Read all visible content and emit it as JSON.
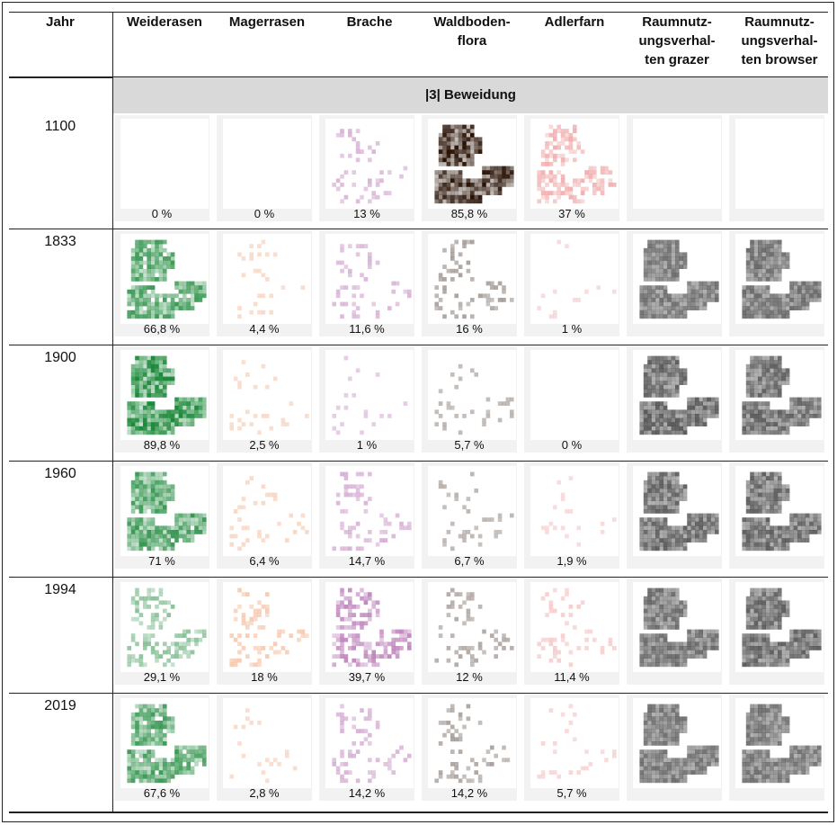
{
  "header": {
    "year_label": "Jahr",
    "columns": [
      "Weiderasen",
      "Magerrasen",
      "Brache",
      "Waldboden-\nflora",
      "Adlerfarn",
      "Raumnutz-\nungsverhal-\nten grazer",
      "Raumnutz-\nungsverhal-\nten browser"
    ]
  },
  "section_label": "|3| Beweidung",
  "colors": {
    "weiderasen": "#1e8a3c",
    "magerrasen": "#e8844a",
    "brache": "#9a3d96",
    "waldbodenflora": "#2a1306",
    "adlerfarn": "#e9797a",
    "grazer": "#555555",
    "browser": "#555555"
  },
  "rows": [
    {
      "year": "1100",
      "values": [
        "0 %",
        "0 %",
        "13 %",
        "85,8 %",
        "37 %",
        "",
        ""
      ],
      "maps": [
        0,
        0,
        0.13,
        0.858,
        0.37,
        null,
        null
      ]
    },
    {
      "year": "1833",
      "values": [
        "66,8 %",
        "4,4 %",
        "11,6 %",
        "16 %",
        "1 %",
        "",
        ""
      ],
      "maps": [
        0.668,
        0.044,
        0.116,
        0.16,
        0.01,
        0.55,
        0.6
      ]
    },
    {
      "year": "1900",
      "values": [
        "89,8 %",
        "2,5 %",
        "1 %",
        "5,7 %",
        "0 %",
        "",
        ""
      ],
      "maps": [
        0.898,
        0.025,
        0.01,
        0.057,
        0,
        0.75,
        0.7
      ]
    },
    {
      "year": "1960",
      "values": [
        "71 %",
        "6,4 %",
        "14,7 %",
        "6,7 %",
        "1,9 %",
        "",
        ""
      ],
      "maps": [
        0.71,
        0.064,
        0.147,
        0.067,
        0.019,
        0.7,
        0.7
      ]
    },
    {
      "year": "1994",
      "values": [
        "29,1 %",
        "18 %",
        "39,7 %",
        "12 %",
        "11,4 %",
        "",
        ""
      ],
      "maps": [
        0.291,
        0.18,
        0.397,
        0.12,
        0.114,
        0.6,
        0.7
      ]
    },
    {
      "year": "2019",
      "values": [
        "67,6 %",
        "2,8 %",
        "14,2 %",
        "14,2 %",
        "5,7 %",
        "",
        ""
      ],
      "maps": [
        0.676,
        0.028,
        0.142,
        0.142,
        0.057,
        0.55,
        0.55
      ]
    }
  ]
}
